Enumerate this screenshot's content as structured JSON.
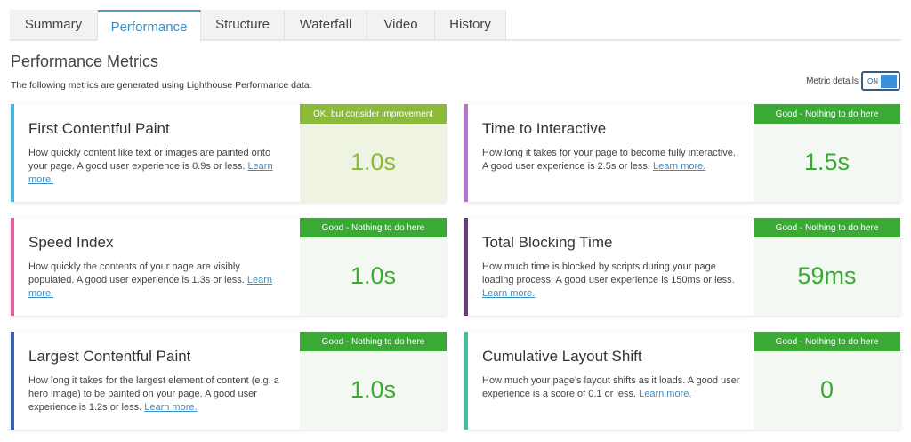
{
  "tabs": [
    {
      "label": "Summary"
    },
    {
      "label": "Performance"
    },
    {
      "label": "Structure"
    },
    {
      "label": "Waterfall"
    },
    {
      "label": "Video"
    },
    {
      "label": "History"
    }
  ],
  "active_tab": "Performance",
  "page_title": "Performance Metrics",
  "subtitle": "The following metrics are generated using Lighthouse Performance data.",
  "metric_details": {
    "label": "Metric details",
    "state": "ON"
  },
  "colors": {
    "ok": "#8cba3a",
    "good": "#3aaa35",
    "ok_value": "#8cba3a",
    "good_value": "#3aaa35"
  },
  "metrics": [
    {
      "name": "First Contentful Paint",
      "desc": "How quickly content like text or images are painted onto your page. A good user experience is 0.9s or less.",
      "link": "Learn more.",
      "status": "OK, but consider improvement",
      "value": "1.0s",
      "accent": "#45b3de"
    },
    {
      "name": "Time to Interactive",
      "desc": "How long it takes for your page to become fully interactive. A good user experience is 2.5s or less.",
      "link": "Learn more.",
      "status": "Good - Nothing to do here",
      "value": "1.5s",
      "accent": "#b574cf"
    },
    {
      "name": "Speed Index",
      "desc": "How quickly the contents of your page are visibly populated. A good user experience is 1.3s or less.",
      "link": "Learn more.",
      "status": "Good - Nothing to do here",
      "value": "1.0s",
      "accent": "#e2609f"
    },
    {
      "name": "Total Blocking Time",
      "desc": "How much time is blocked by scripts during your page loading process. A good user experience is 150ms or less.",
      "link": "Learn more.",
      "status": "Good - Nothing to do here",
      "value": "59ms",
      "accent": "#6e3b7f"
    },
    {
      "name": "Largest Contentful Paint",
      "desc": "How long it takes for the largest element of content (e.g. a hero image) to be painted on your page. A good user experience is 1.2s or less.",
      "link": "Learn more.",
      "status": "Good - Nothing to do here",
      "value": "1.0s",
      "accent": "#3b63b0"
    },
    {
      "name": "Cumulative Layout Shift",
      "desc": "How much your page's layout shifts as it loads. A good user experience is a score of 0.1 or less.",
      "link": "Learn more.",
      "status": "Good - Nothing to do here",
      "value": "0",
      "accent": "#3fbf9f"
    }
  ]
}
